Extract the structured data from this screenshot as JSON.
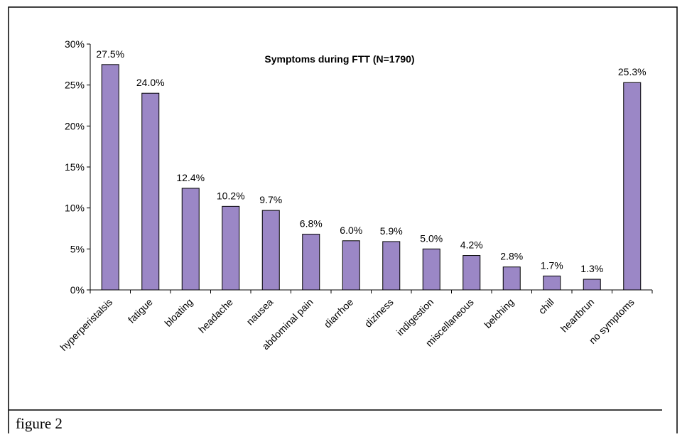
{
  "chart_data": {
    "type": "bar",
    "title": "Symptoms during FTT (N=1790)",
    "categories": [
      "hyperperistalsis",
      "fatigue",
      "bloating",
      "headache",
      "nausea",
      "abdominal pain",
      "diarrhoe",
      "diziness",
      "indigestion",
      "miscellaneous",
      "belching",
      "chill",
      "heartbrun",
      "no symptoms"
    ],
    "values": [
      27.5,
      24.0,
      12.4,
      10.2,
      9.7,
      6.8,
      6.0,
      5.9,
      5.0,
      4.2,
      2.8,
      1.7,
      1.3,
      25.3
    ],
    "value_labels": [
      "27.5%",
      "24.0%",
      "12.4%",
      "10.2%",
      "9.7%",
      "6.8%",
      "6.0%",
      "5.9%",
      "5.0%",
      "4.2%",
      "2.8%",
      "1.7%",
      "1.3%",
      "25.3%"
    ],
    "color": "#9b87c6",
    "ylim": [
      0,
      30
    ],
    "yticks": [
      {
        "value": 0,
        "label": "0%"
      },
      {
        "value": 5,
        "label": "5%"
      },
      {
        "value": 10,
        "label": "10%"
      },
      {
        "value": 15,
        "label": "15%"
      },
      {
        "value": 20,
        "label": "20%"
      },
      {
        "value": 25,
        "label": "25%"
      },
      {
        "value": 30,
        "label": "30%"
      }
    ],
    "grid": false
  },
  "caption": "figure 2"
}
